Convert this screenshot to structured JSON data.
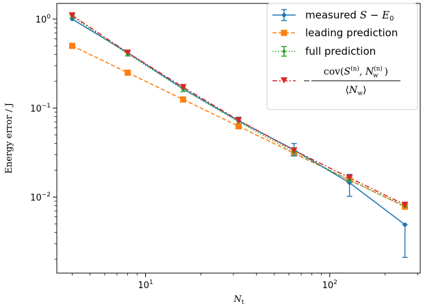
{
  "chart_data": {
    "type": "line",
    "x_scale": "log",
    "y_scale": "log",
    "xlim": [
      3.3,
      310
    ],
    "ylim": [
      0.0014,
      1.5
    ],
    "xlabel": {
      "main": "N",
      "sub": "t"
    },
    "ylabel": "Energy error / J",
    "x_ticks": [
      {
        "value": 10,
        "base": "10",
        "exp": "1"
      },
      {
        "value": 100,
        "base": "10",
        "exp": "2"
      }
    ],
    "y_ticks": [
      {
        "value": 1,
        "base": "10",
        "exp": "0"
      },
      {
        "value": 0.1,
        "base": "10",
        "exp": "−1"
      },
      {
        "value": 0.01,
        "base": "10",
        "exp": "−2"
      }
    ],
    "grid": false,
    "legend_position": "top-right",
    "x": [
      4,
      8,
      16,
      32,
      64,
      128,
      256
    ],
    "series": [
      {
        "name": "measured S − E0",
        "color": "#1f77b4",
        "linestyle": "solid",
        "marker": "circle",
        "values": [
          1.0,
          0.42,
          0.165,
          0.072,
          0.034,
          0.0145,
          0.0049
        ],
        "yerr_low": [
          0.0,
          0.0,
          0.0,
          0.0,
          0.005,
          0.0043,
          0.0028
        ],
        "yerr_high": [
          0.0,
          0.0,
          0.0,
          0.007,
          0.006,
          0.0035,
          0.0
        ]
      },
      {
        "name": "leading prediction",
        "color": "#ff7f0e",
        "linestyle": "dashed",
        "marker": "square",
        "values": [
          0.5,
          0.25,
          0.125,
          0.0625,
          0.031,
          0.0156,
          0.0078
        ]
      },
      {
        "name": "full prediction",
        "color": "#2ca02c",
        "linestyle": "dotted",
        "marker": "circle-small",
        "values": [
          1.07,
          0.405,
          0.163,
          0.07,
          0.032,
          0.0155,
          0.0079
        ],
        "yerr_low": [
          0.04,
          0.02,
          0.01,
          0.0,
          0.0,
          0.0,
          0.0
        ],
        "yerr_high": [
          0.04,
          0.02,
          0.01,
          0.0,
          0.0,
          0.0,
          0.0
        ]
      },
      {
        "name": "−cov(S(n), Nw(n)) / ⟨Nw⟩",
        "color": "#d62728",
        "color2": "#8c564b",
        "linestyle": "dashdot",
        "marker": "triangle-down",
        "values": [
          1.1,
          0.42,
          0.172,
          0.073,
          0.0335,
          0.0165,
          0.0082
        ]
      }
    ]
  }
}
